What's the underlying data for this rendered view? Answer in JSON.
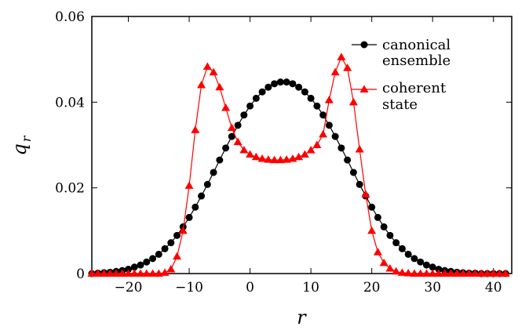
{
  "chart_data": {
    "type": "line",
    "xlabel": "r",
    "ylabel": "q",
    "ylabel_subscript": "r",
    "xlim": [
      -26,
      43
    ],
    "ylim": [
      0,
      0.06
    ],
    "xticks": [
      -20,
      -10,
      0,
      10,
      20,
      30,
      40
    ],
    "xtick_labels": [
      "−20",
      "−10",
      "0",
      "10",
      "20",
      "30",
      "40"
    ],
    "yticks": [
      0,
      0.02,
      0.04,
      0.06
    ],
    "ytick_labels": [
      "0",
      "0.02",
      "0.04",
      "0.06"
    ],
    "grid": false,
    "legend_position": "top-right",
    "series": [
      {
        "name_lines": [
          "canonical",
          "ensemble"
        ],
        "marker": "circle",
        "color": "#000000",
        "x_start": -26,
        "x_end": 42,
        "x_step": 1,
        "values": [
          0.0,
          0.0001,
          0.0002,
          0.0003,
          0.0005,
          0.0007,
          0.001,
          0.0015,
          0.002,
          0.0027,
          0.0035,
          0.0045,
          0.0058,
          0.0072,
          0.0089,
          0.0109,
          0.0131,
          0.0155,
          0.0181,
          0.0208,
          0.0236,
          0.0265,
          0.0293,
          0.032,
          0.0346,
          0.037,
          0.0391,
          0.0409,
          0.0424,
          0.0435,
          0.0443,
          0.0447,
          0.0447,
          0.0443,
          0.0435,
          0.0424,
          0.0409,
          0.0391,
          0.037,
          0.0346,
          0.032,
          0.0293,
          0.0265,
          0.0236,
          0.0208,
          0.0181,
          0.0155,
          0.0131,
          0.0109,
          0.0089,
          0.0072,
          0.0058,
          0.0045,
          0.0035,
          0.0027,
          0.002,
          0.0015,
          0.001,
          0.0007,
          0.0005,
          0.0003,
          0.0002,
          0.0001,
          0.0001,
          0.0,
          0.0,
          0.0,
          0.0,
          0.0
        ]
      },
      {
        "name_lines": [
          "coherent",
          "state"
        ],
        "marker": "triangle",
        "color": "#ff0000",
        "x_start": -26,
        "x_end": 42,
        "x_step": 1,
        "values": [
          0.0,
          0.0,
          0.0,
          0.0,
          0.0,
          0.0,
          0.0,
          0.0,
          0.0,
          0.0,
          0.0,
          0.0,
          0.0002,
          0.001,
          0.004,
          0.01,
          0.0205,
          0.0335,
          0.044,
          0.0483,
          0.047,
          0.0435,
          0.0387,
          0.034,
          0.0307,
          0.0288,
          0.0278,
          0.0272,
          0.0268,
          0.0266,
          0.0265,
          0.0265,
          0.0266,
          0.0268,
          0.0272,
          0.0278,
          0.0288,
          0.03,
          0.0325,
          0.0405,
          0.047,
          0.0505,
          0.048,
          0.04,
          0.029,
          0.0185,
          0.01,
          0.005,
          0.0025,
          0.0012,
          0.0005,
          0.0002,
          0.0001,
          0.0,
          0.0,
          0.0,
          0.0,
          0.0,
          0.0,
          0.0,
          0.0,
          0.0,
          0.0,
          0.0,
          0.0,
          0.0,
          0.0,
          0.0,
          0.0
        ]
      }
    ]
  }
}
